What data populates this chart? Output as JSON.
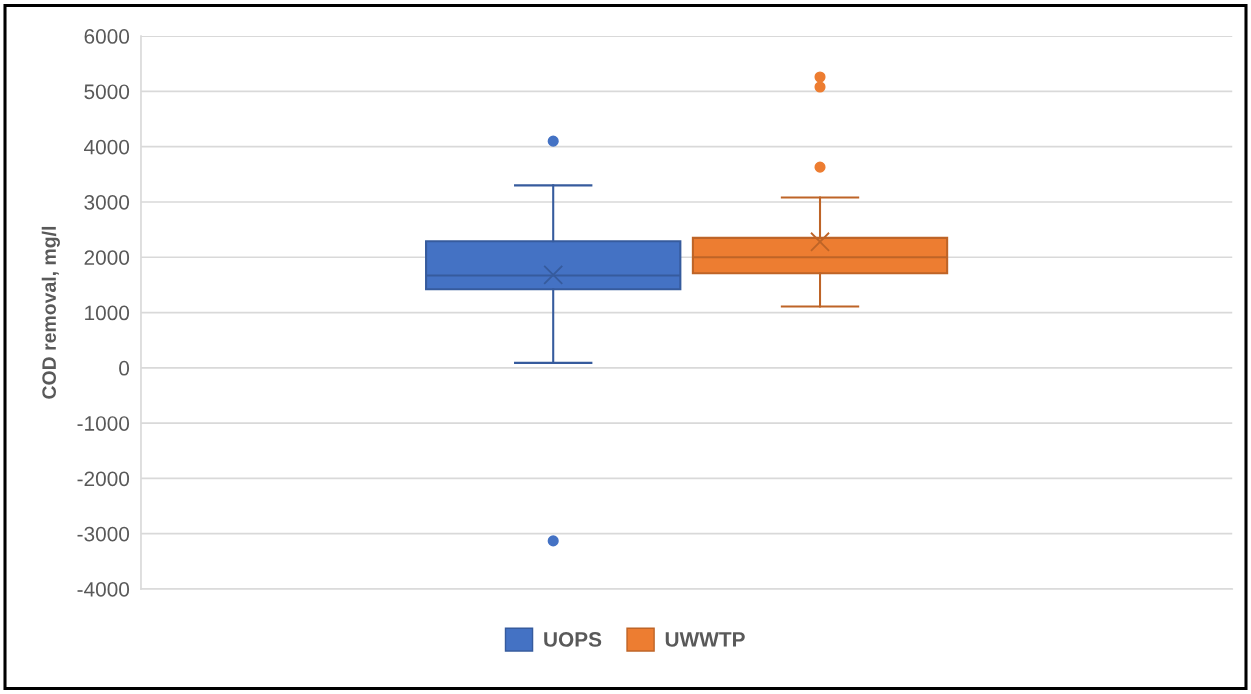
{
  "chart_data": {
    "type": "box",
    "ylabel": "COD removal, mg/l",
    "categories": [
      null
    ],
    "series": [
      {
        "name": "UOPS",
        "color": "#4472c4",
        "boxes": [
          {
            "low": 90,
            "q1": 1420,
            "median": 1670,
            "q3": 2290,
            "high": 3300,
            "mean": 1680,
            "outliers": [
              4100,
              -3130
            ]
          }
        ]
      },
      {
        "name": "UWWTP",
        "color": "#ed7d31",
        "boxes": [
          {
            "low": 1110,
            "q1": 1710,
            "median": 2000,
            "q3": 2350,
            "high": 3080,
            "mean": 2280,
            "outliers": [
              5260,
              5080,
              3630
            ]
          }
        ]
      }
    ],
    "ylim": [
      -4000,
      6000
    ],
    "yticks": [
      -4000,
      -3000,
      -2000,
      -1000,
      0,
      1000,
      2000,
      3000,
      4000,
      5000,
      6000
    ],
    "grid": "y",
    "legend": "bottom",
    "tick_labels": "y"
  }
}
